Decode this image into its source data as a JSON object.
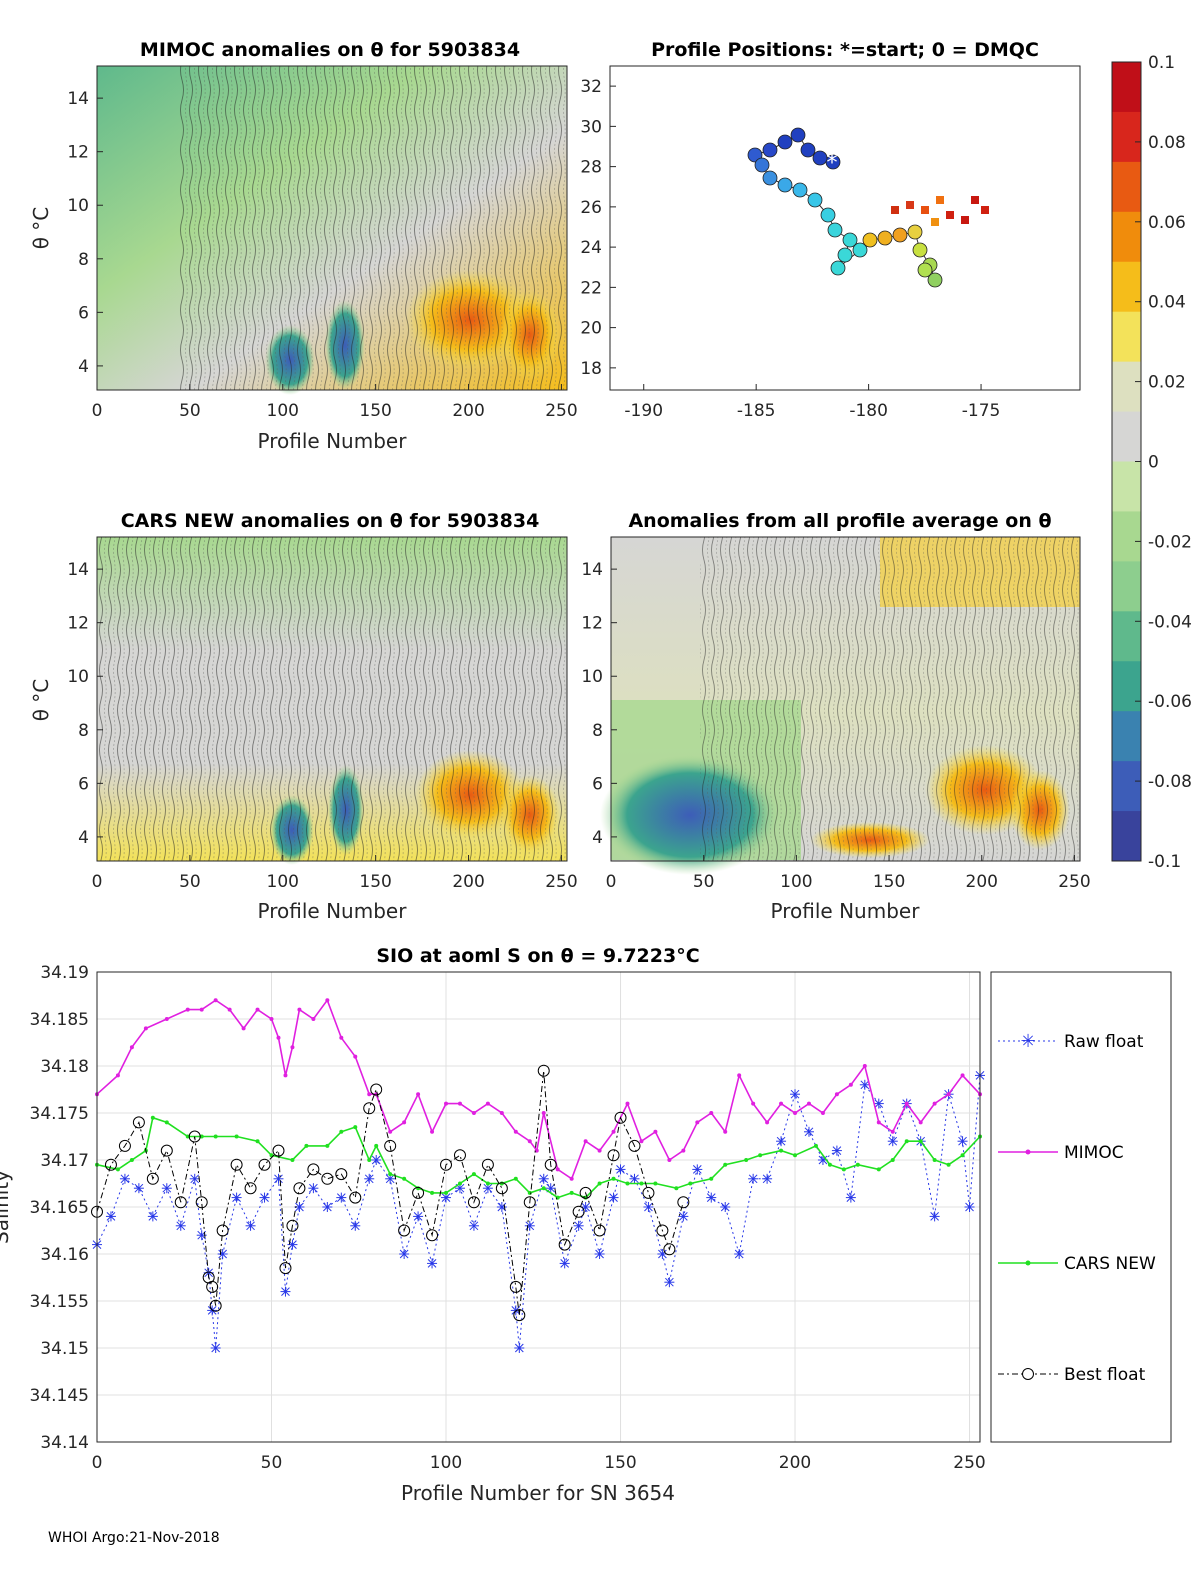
{
  "panels": {
    "mimoc": {
      "title": "MIMOC anomalies on θ  for 5903834",
      "xlabel": "Profile Number",
      "ylabel": "θ °C",
      "xticks": [
        "0",
        "50",
        "100",
        "150",
        "200",
        "250"
      ],
      "yticks": [
        "4",
        "6",
        "8",
        "10",
        "12",
        "14"
      ]
    },
    "positions": {
      "title": "Profile Positions: *=start; 0 = DMQC",
      "xticks": [
        "-190",
        "-185",
        "-180",
        "-175"
      ],
      "yticks": [
        "18",
        "20",
        "22",
        "24",
        "26",
        "28",
        "30",
        "32"
      ]
    },
    "cars": {
      "title": "CARS NEW anomalies on θ for 5903834",
      "xlabel": "Profile Number",
      "ylabel": "θ °C",
      "xticks": [
        "0",
        "50",
        "100",
        "150",
        "200",
        "250"
      ],
      "yticks": [
        "4",
        "6",
        "8",
        "10",
        "12",
        "14"
      ]
    },
    "allavg": {
      "title": "Anomalies from all profile average on θ",
      "xlabel": "Profile Number",
      "xticks": [
        "0",
        "50",
        "100",
        "150",
        "200",
        "250"
      ],
      "yticks": [
        "4",
        "6",
        "8",
        "10",
        "12",
        "14"
      ]
    }
  },
  "colorbar": {
    "ticks": [
      "0.1",
      "0.08",
      "0.06",
      "0.04",
      "0.02",
      "0",
      "-0.02",
      "-0.04",
      "-0.06",
      "-0.08",
      "-0.1"
    ],
    "colors": [
      "#c00f18",
      "#d8261c",
      "#e85a12",
      "#f08c0c",
      "#f5bd1a",
      "#f3e25a",
      "#dde0c0",
      "#d6d6d4",
      "#c8e4a8",
      "#a8d890",
      "#8dce8e",
      "#5fb98c",
      "#3ca48e",
      "#3a82b0",
      "#3d5db8",
      "#39439c"
    ]
  },
  "chart_data": {
    "type": "line",
    "title": "SIO at aoml S on θ = 9.7223°C",
    "xlabel": "Profile Number for SN 3654",
    "ylabel": "Salinity",
    "xlim": [
      0,
      253
    ],
    "ylim": [
      34.14,
      34.19
    ],
    "xticks": [
      "0",
      "50",
      "100",
      "150",
      "200",
      "250"
    ],
    "yticks": [
      "34.14",
      "34.145",
      "34.15",
      "34.155",
      "34.16",
      "34.165",
      "34.17",
      "34.175",
      "34.18",
      "34.185",
      "34.19"
    ],
    "series": [
      {
        "name": "Raw float",
        "color": "#2838e8",
        "x": [
          0,
          4,
          8,
          12,
          16,
          20,
          24,
          28,
          30,
          32,
          33,
          34,
          36,
          40,
          44,
          48,
          52,
          54,
          56,
          58,
          62,
          66,
          70,
          74,
          78,
          80,
          84,
          88,
          92,
          96,
          100,
          104,
          108,
          112,
          116,
          120,
          121,
          124,
          128,
          130,
          134,
          138,
          140,
          144,
          148,
          150,
          154,
          158,
          162,
          164,
          168,
          172,
          176,
          180,
          184,
          188,
          192,
          196,
          200,
          204,
          208,
          212,
          216,
          220,
          224,
          228,
          232,
          236,
          240,
          244,
          248,
          250,
          253
        ],
        "values": [
          34.161,
          34.164,
          34.168,
          34.167,
          34.164,
          34.167,
          34.163,
          34.168,
          34.162,
          34.158,
          34.154,
          34.15,
          34.16,
          34.166,
          34.163,
          34.166,
          34.168,
          34.156,
          34.161,
          34.165,
          34.167,
          34.165,
          34.166,
          34.163,
          34.168,
          34.17,
          34.168,
          34.16,
          34.164,
          34.159,
          34.166,
          34.167,
          34.163,
          34.167,
          34.165,
          34.154,
          34.15,
          34.163,
          34.168,
          34.167,
          34.159,
          34.163,
          34.165,
          34.16,
          34.166,
          34.169,
          34.168,
          34.165,
          34.16,
          34.157,
          34.164,
          34.169,
          34.166,
          34.165,
          34.16,
          34.168,
          34.168,
          34.172,
          34.177,
          34.173,
          34.17,
          34.171,
          34.166,
          34.178,
          34.176,
          34.172,
          34.176,
          34.172,
          34.164,
          34.177,
          34.172,
          34.165,
          34.179
        ]
      },
      {
        "name": "MIMOC",
        "color": "#e020e0",
        "x": [
          0,
          6,
          10,
          14,
          20,
          26,
          30,
          34,
          38,
          42,
          46,
          50,
          52,
          54,
          56,
          58,
          62,
          66,
          70,
          74,
          78,
          80,
          84,
          88,
          92,
          96,
          100,
          104,
          108,
          112,
          116,
          120,
          124,
          126,
          128,
          132,
          136,
          140,
          144,
          148,
          152,
          156,
          160,
          164,
          168,
          172,
          176,
          180,
          184,
          188,
          192,
          196,
          200,
          204,
          208,
          212,
          216,
          220,
          224,
          228,
          232,
          236,
          240,
          244,
          248,
          253
        ],
        "values": [
          34.177,
          34.179,
          34.182,
          34.184,
          34.185,
          34.186,
          34.186,
          34.187,
          34.186,
          34.184,
          34.186,
          34.185,
          34.183,
          34.179,
          34.182,
          34.186,
          34.185,
          34.187,
          34.183,
          34.181,
          34.177,
          34.177,
          34.173,
          34.174,
          34.177,
          34.173,
          34.176,
          34.176,
          34.175,
          34.176,
          34.175,
          34.173,
          34.172,
          34.171,
          34.175,
          34.169,
          34.168,
          34.172,
          34.171,
          34.173,
          34.176,
          34.172,
          34.173,
          34.17,
          34.171,
          34.174,
          34.175,
          34.173,
          34.179,
          34.176,
          34.174,
          34.176,
          34.175,
          34.176,
          34.175,
          34.177,
          34.178,
          34.18,
          34.174,
          34.173,
          34.176,
          34.174,
          34.176,
          34.177,
          34.179,
          34.177
        ]
      },
      {
        "name": "CARS NEW",
        "color": "#20e020",
        "x": [
          0,
          6,
          10,
          14,
          16,
          20,
          26,
          30,
          34,
          40,
          46,
          50,
          56,
          60,
          66,
          70,
          74,
          78,
          80,
          84,
          88,
          92,
          96,
          100,
          104,
          108,
          112,
          116,
          120,
          124,
          128,
          132,
          136,
          140,
          144,
          148,
          152,
          156,
          160,
          166,
          170,
          176,
          180,
          186,
          190,
          196,
          200,
          206,
          210,
          214,
          218,
          224,
          228,
          232,
          236,
          240,
          244,
          248,
          253
        ],
        "values": [
          34.1695,
          34.169,
          34.17,
          34.171,
          34.1745,
          34.174,
          34.1725,
          34.1725,
          34.1725,
          34.1725,
          34.172,
          34.1705,
          34.17,
          34.1715,
          34.1715,
          34.173,
          34.1735,
          34.17,
          34.1715,
          34.1685,
          34.168,
          34.167,
          34.1665,
          34.1665,
          34.1675,
          34.1685,
          34.1675,
          34.1675,
          34.168,
          34.1665,
          34.167,
          34.166,
          34.1665,
          34.166,
          34.1675,
          34.168,
          34.1675,
          34.1675,
          34.1675,
          34.167,
          34.1675,
          34.168,
          34.1695,
          34.17,
          34.1705,
          34.171,
          34.1705,
          34.1715,
          34.1695,
          34.169,
          34.1695,
          34.169,
          34.17,
          34.172,
          34.172,
          34.17,
          34.1695,
          34.1705,
          34.1725
        ]
      },
      {
        "name": "Best float",
        "color": "#000000",
        "x": [
          0,
          4,
          8,
          12,
          16,
          20,
          24,
          28,
          30,
          32,
          33,
          34,
          36,
          40,
          44,
          48,
          52,
          54,
          56,
          58,
          62,
          66,
          70,
          74,
          78,
          80,
          84,
          88,
          92,
          96,
          100,
          104,
          108,
          112,
          116,
          120,
          121,
          124,
          128,
          130,
          134,
          138,
          140,
          144,
          148,
          150,
          154,
          158,
          162,
          164,
          168
        ],
        "values": [
          34.1645,
          34.1695,
          34.1715,
          34.174,
          34.168,
          34.171,
          34.1655,
          34.1725,
          34.1655,
          34.1575,
          34.1565,
          34.1545,
          34.1625,
          34.1695,
          34.167,
          34.1695,
          34.171,
          34.1585,
          34.163,
          34.167,
          34.169,
          34.168,
          34.1685,
          34.166,
          34.1755,
          34.1775,
          34.1715,
          34.1625,
          34.1665,
          34.162,
          34.1695,
          34.1705,
          34.1655,
          34.1695,
          34.167,
          34.1565,
          34.1535,
          34.1655,
          34.1795,
          34.1695,
          34.161,
          34.1645,
          34.1665,
          34.1625,
          34.1705,
          34.1745,
          34.1715,
          34.1665,
          34.1625,
          34.1605,
          34.1655
        ]
      }
    ]
  },
  "footer": "WHOI Argo:21-Nov-2018"
}
